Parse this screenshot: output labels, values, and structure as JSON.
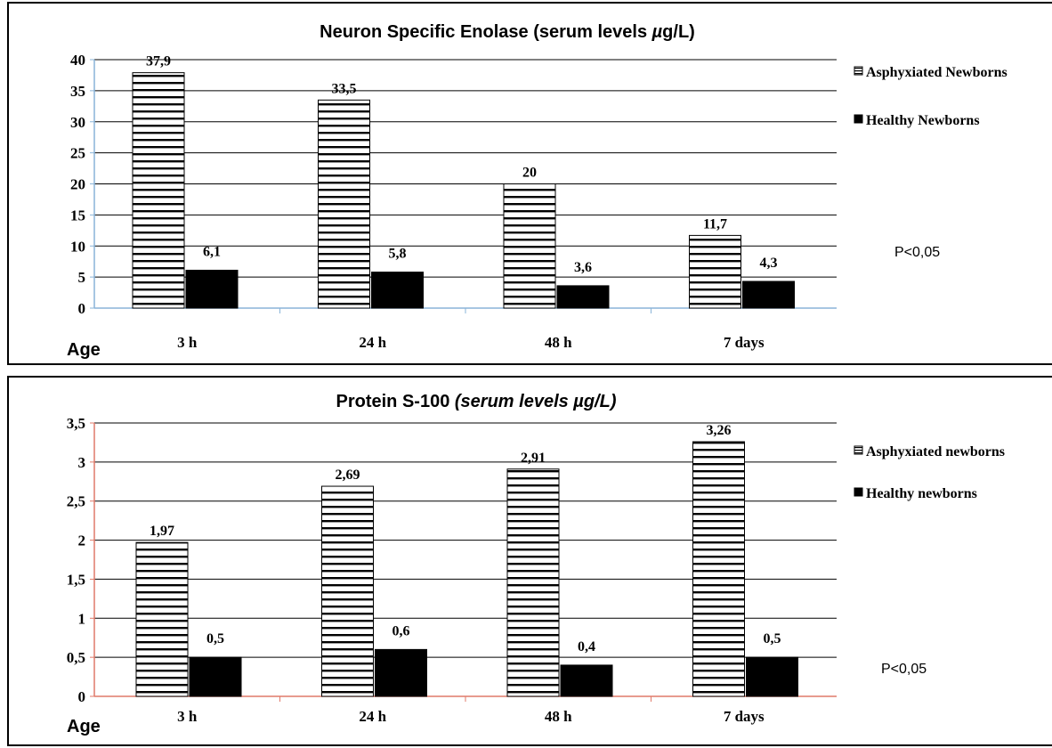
{
  "chart_data": [
    {
      "type": "bar",
      "title": "Neuron Specific Enolase (serum levels µg/L)",
      "title_parts": [
        {
          "text": "Neuron Specific Enolase (serum levels ",
          "italic": false
        },
        {
          "text": "µ",
          "italic": true
        },
        {
          "text": "g/L)",
          "italic": false
        }
      ],
      "xlabel": "Age",
      "ylabel": "",
      "categories": [
        "3 h",
        "24 h",
        "48 h",
        "7 days"
      ],
      "ylim": [
        0,
        40
      ],
      "yticks": [
        0,
        5,
        10,
        15,
        20,
        25,
        30,
        35,
        40
      ],
      "ytick_labels": [
        "0",
        "5",
        "10",
        "15",
        "20",
        "25",
        "30",
        "35",
        "40"
      ],
      "grid": true,
      "legend_position": "top-right",
      "axis_color": "#8ab4d8",
      "series": [
        {
          "name": "Asphyxiated Newborns",
          "pattern": "horizontal-stripes",
          "values": [
            37.9,
            33.5,
            20,
            11.7
          ],
          "labels": [
            "37,9",
            "33,5",
            "20",
            "11,7"
          ]
        },
        {
          "name": "Healthy Newborns",
          "pattern": "solid-black",
          "values": [
            6.1,
            5.8,
            3.6,
            4.3
          ],
          "labels": [
            "6,1",
            "5,8",
            "3,6",
            "4,3"
          ]
        }
      ],
      "annotation": "P<0,05"
    },
    {
      "type": "bar",
      "title": "Protein S-100 (serum levels µg/L)",
      "title_parts": [
        {
          "text": "Protein S-100 ",
          "italic": false
        },
        {
          "text": "(serum levels µg/L)",
          "italic": true
        }
      ],
      "xlabel": "Age",
      "ylabel": "",
      "categories": [
        "3 h",
        "24 h",
        "48 h",
        "7 days"
      ],
      "ylim": [
        0,
        3.5
      ],
      "yticks": [
        0,
        0.5,
        1,
        1.5,
        2,
        2.5,
        3,
        3.5
      ],
      "ytick_labels": [
        "0",
        "0,5",
        "1",
        "1,5",
        "2",
        "2,5",
        "3",
        "3,5"
      ],
      "grid": true,
      "legend_position": "top-right",
      "axis_color": "#e07a6a",
      "series": [
        {
          "name": "Asphyxiated newborns",
          "pattern": "horizontal-stripes",
          "values": [
            1.97,
            2.69,
            2.91,
            3.26
          ],
          "labels": [
            "1,97",
            "2,69",
            "2,91",
            "3,26"
          ]
        },
        {
          "name": "Healthy newborns",
          "pattern": "solid-black",
          "values": [
            0.5,
            0.6,
            0.4,
            0.5
          ],
          "labels": [
            "0,5",
            "0,6",
            "0,4",
            "0,5"
          ]
        }
      ],
      "annotation": "P<0,05"
    }
  ]
}
